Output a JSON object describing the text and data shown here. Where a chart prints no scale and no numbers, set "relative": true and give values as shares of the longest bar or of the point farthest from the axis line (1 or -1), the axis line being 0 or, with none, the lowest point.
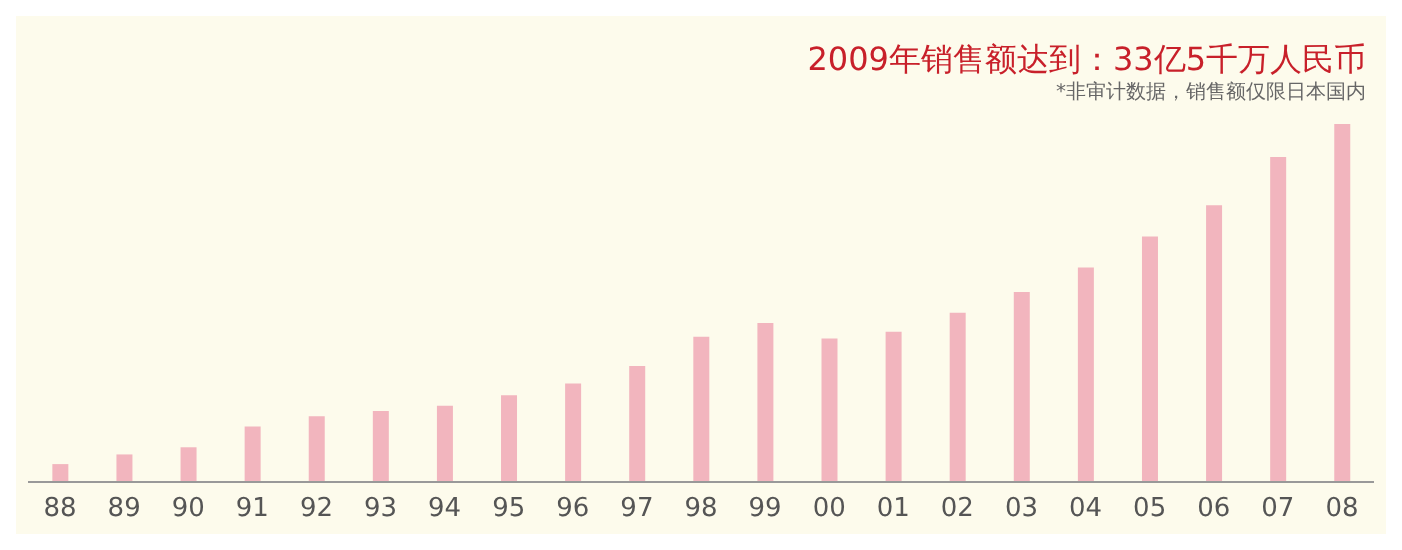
{
  "chart_data": {
    "type": "bar",
    "title": "2009年销售额达到：33亿5千万人民币",
    "annotations": [
      "*非审计数据，销售额仅限日本国内"
    ],
    "categories": [
      "88",
      "89",
      "90",
      "91",
      "92",
      "93",
      "94",
      "95",
      "96",
      "97",
      "98",
      "99",
      "00",
      "01",
      "02",
      "03",
      "04",
      "05",
      "06",
      "07",
      "08"
    ],
    "values": [
      0.05,
      0.077,
      0.097,
      0.155,
      0.184,
      0.198,
      0.213,
      0.242,
      0.275,
      0.324,
      0.406,
      0.444,
      0.401,
      0.42,
      0.473,
      0.531,
      0.599,
      0.686,
      0.773,
      0.908,
      1
    ],
    "color": "#f2b5be",
    "relative": true,
    "grid": false,
    "legend": false
  }
}
